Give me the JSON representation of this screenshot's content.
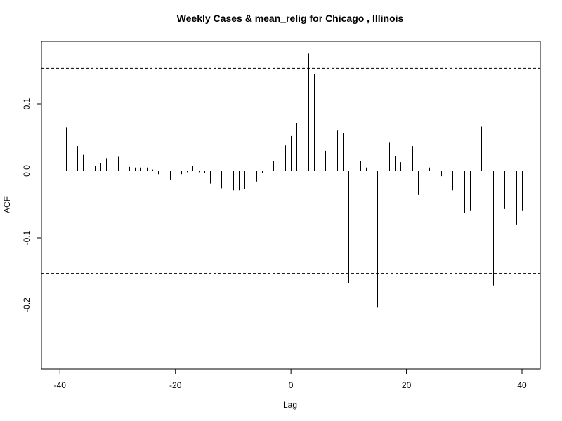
{
  "chart_data": {
    "type": "bar",
    "subtype": "cross-correlation (ACF) spike plot",
    "title": "Weekly Cases & mean_relig for Chicago , Illinois",
    "xlabel": "Lag",
    "ylabel": "ACF",
    "xlim": [
      -42,
      42
    ],
    "ylim": [
      -0.29,
      0.19
    ],
    "xticks": [
      -40,
      -20,
      0,
      20,
      40
    ],
    "xtick_labels": [
      "-40",
      "-20",
      "0",
      "20",
      "40"
    ],
    "yticks": [
      -0.2,
      -0.1,
      0.0,
      0.1
    ],
    "ytick_labels": [
      "-0.2",
      "-0.1",
      "0.0",
      "0.1"
    ],
    "confidence_band": 0.153,
    "grid": false,
    "x": [
      -40,
      -39,
      -38,
      -37,
      -36,
      -35,
      -34,
      -33,
      -32,
      -31,
      -30,
      -29,
      -28,
      -27,
      -26,
      -25,
      -24,
      -23,
      -22,
      -21,
      -20,
      -19,
      -18,
      -17,
      -16,
      -15,
      -14,
      -13,
      -12,
      -11,
      -10,
      -9,
      -8,
      -7,
      -6,
      -5,
      -4,
      -3,
      -2,
      -1,
      0,
      1,
      2,
      3,
      4,
      5,
      6,
      7,
      8,
      9,
      10,
      11,
      12,
      13,
      14,
      15,
      16,
      17,
      18,
      19,
      20,
      21,
      22,
      23,
      24,
      25,
      26,
      27,
      28,
      29,
      30,
      31,
      32,
      33,
      34,
      35,
      36,
      37,
      38,
      39,
      40
    ],
    "values": [
      0.071,
      0.065,
      0.055,
      0.037,
      0.024,
      0.014,
      0.007,
      0.012,
      0.019,
      0.024,
      0.021,
      0.013,
      0.006,
      0.005,
      0.005,
      0.005,
      0.002,
      -0.005,
      -0.01,
      -0.013,
      -0.014,
      -0.005,
      -0.002,
      0.007,
      -0.002,
      -0.003,
      -0.019,
      -0.025,
      -0.026,
      -0.029,
      -0.029,
      -0.029,
      -0.027,
      -0.025,
      -0.016,
      -0.003,
      0.003,
      0.015,
      0.023,
      0.038,
      0.052,
      0.071,
      0.125,
      0.175,
      0.145,
      0.037,
      0.03,
      0.034,
      0.061,
      0.056,
      -0.168,
      0.01,
      0.015,
      0.005,
      -0.276,
      -0.204,
      0.047,
      0.042,
      0.022,
      0.013,
      0.017,
      0.037,
      -0.036,
      -0.065,
      0.005,
      -0.068,
      -0.008,
      0.027,
      -0.029,
      -0.064,
      -0.063,
      -0.06,
      0.053,
      0.066,
      -0.058,
      -0.171,
      -0.083,
      -0.057,
      -0.022,
      -0.08,
      -0.06
    ]
  }
}
